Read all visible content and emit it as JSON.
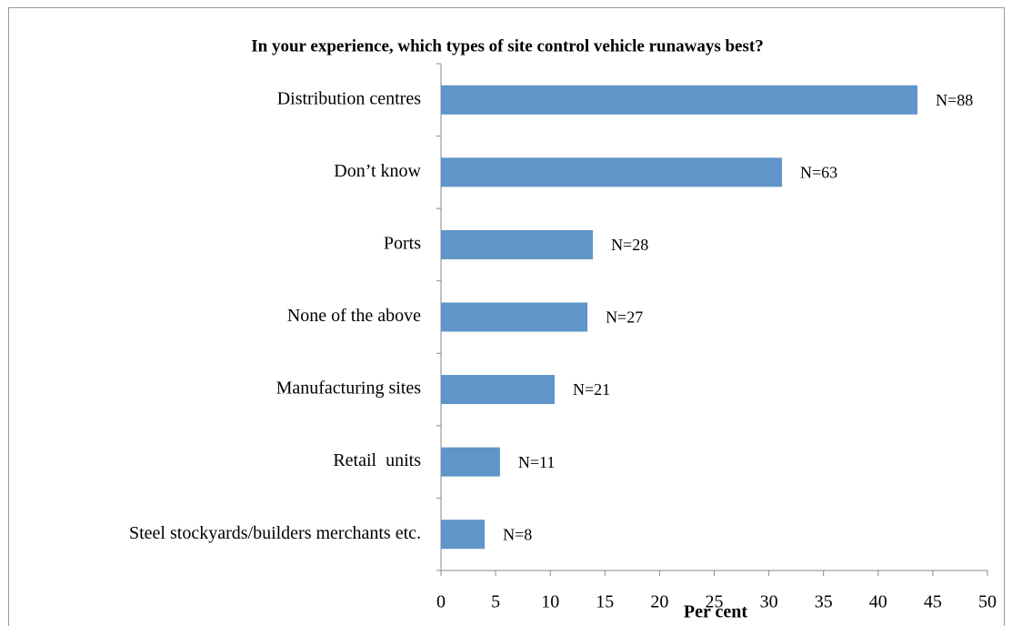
{
  "chart_data": {
    "type": "bar",
    "orientation": "horizontal",
    "title": "In your experience, which types of site control vehicle runaways best?",
    "categories": [
      "Distribution centres",
      "Don’t know",
      "Ports",
      "None of the above",
      "Manufacturing sites",
      "Retail  units",
      "Steel stockyards/builders merchants etc."
    ],
    "values": [
      43.6,
      31.2,
      13.9,
      13.4,
      10.4,
      5.4,
      4.0
    ],
    "bar_labels": [
      "N=88",
      "N=63",
      "N=28",
      "N=27",
      "N=21",
      "N=11",
      "N=8"
    ],
    "color": "#5f95c8",
    "x_label": "Per cent",
    "xlim": [
      0,
      50
    ],
    "xticks": [
      0,
      5,
      10,
      15,
      20,
      25,
      30,
      35,
      40,
      45,
      50
    ],
    "grid": false
  }
}
